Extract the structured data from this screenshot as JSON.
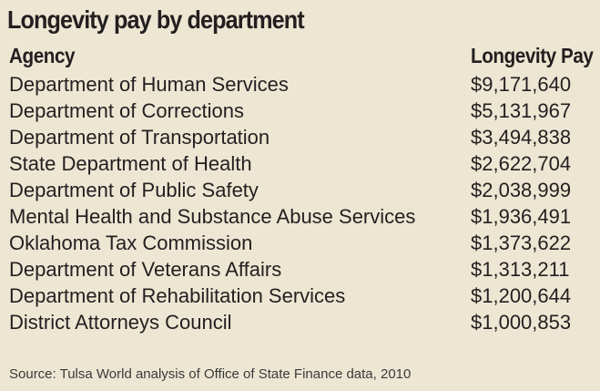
{
  "title": "Longevity pay by department",
  "table": {
    "header": [
      "Agency",
      "Longevity Pay"
    ],
    "rows": [
      [
        "Department of Human Services",
        "$9,171,640"
      ],
      [
        "Department of Corrections",
        "$5,131,967"
      ],
      [
        "Department of Transportation",
        "$3,494,838"
      ],
      [
        "State Department of Health",
        "$2,622,704"
      ],
      [
        "Department of Public Safety",
        "$2,038,999"
      ],
      [
        "Mental Health and Substance Abuse Services",
        "$1,936,491"
      ],
      [
        "Oklahoma Tax Commission",
        "$1,373,622"
      ],
      [
        "Department of Veterans Affairs",
        "$1,313,211"
      ],
      [
        "Department of Rehabilitation Services",
        "$1,200,644"
      ],
      [
        "District Attorneys Council",
        "$1,000,853"
      ]
    ]
  },
  "source": "Source: Tulsa World analysis of Office of State Finance data, 2010"
}
